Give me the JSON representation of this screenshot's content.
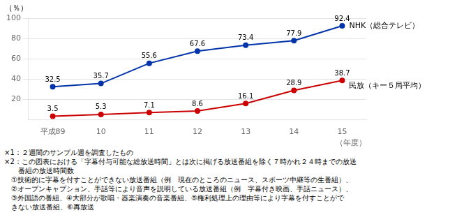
{
  "chart_data": {
    "type": "line",
    "categories": [
      "平成89",
      "10",
      "11",
      "12",
      "13",
      "14",
      "15"
    ],
    "series": [
      {
        "name": "NHK（総合テレビ）",
        "color": "#0033aa",
        "values": [
          32.5,
          35.7,
          55.6,
          67.6,
          73.4,
          77.9,
          92.4
        ]
      },
      {
        "name": "民放（キー５局平均）",
        "color": "#cc0000",
        "values": [
          3.5,
          5.3,
          7.1,
          8.6,
          16.1,
          28.9,
          38.7
        ]
      }
    ],
    "xlabel": "（年度）",
    "ylabel": "（％）",
    "ylim": [
      0,
      100
    ],
    "yticks": [
      20,
      40,
      60,
      80,
      100
    ],
    "grid": true,
    "data_labels": true,
    "marker": "circle",
    "annotations": [
      "×1：２週間のサンプル週を調査したもの",
      "×2：この図表における「字幕付与可能な総放送時間」とは次に掲げる放送番組を除く７時かれ２４時までの放送",
      "　　番組の放送時間数",
      "　①技術的に字幕を付すことができない放送番組（例　現在のところのニュース、スポーツ中継等の生番組）、",
      "　②オープンキャプション、手話等により音声を説明している放送番組（例　字幕付き映画、手話ニュース）、",
      "　③外国語の番組、④大部分が歌唱・器楽演奏の音楽番組、⑤権利処理上の理由等により字幕を付すことがで",
      "　きない放送番組、⑥再放送"
    ]
  }
}
